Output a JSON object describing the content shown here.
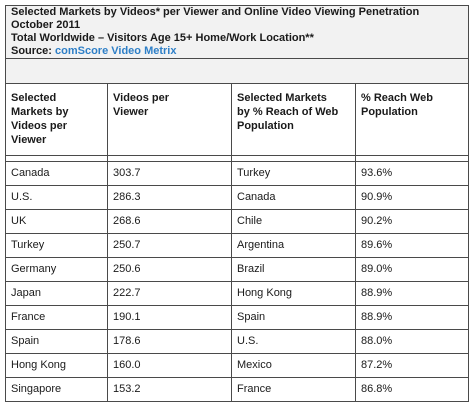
{
  "header": {
    "title_line1": "Selected Markets by Videos* per Viewer and Online Video Viewing Penetration",
    "title_line2": "October 2011",
    "title_line3": "Total Worldwide – Visitors Age 15+ Home/Work Location**",
    "source_label": "Source: ",
    "source_value": "comScore Video Metrix"
  },
  "columns": {
    "c1": [
      "Selected",
      "Markets by",
      "Videos per",
      "Viewer"
    ],
    "c2": [
      "Videos per",
      "Viewer"
    ],
    "c3": [
      "Selected Markets",
      "by % Reach of Web",
      "Population"
    ],
    "c4": [
      "% Reach Web",
      "Population"
    ]
  },
  "rows": [
    {
      "market_videos": "Canada",
      "videos_per_viewer": "303.7",
      "market_reach": "Turkey",
      "reach": "93.6%"
    },
    {
      "market_videos": "U.S.",
      "videos_per_viewer": "286.3",
      "market_reach": "Canada",
      "reach": "90.9%"
    },
    {
      "market_videos": "UK",
      "videos_per_viewer": "268.6",
      "market_reach": "Chile",
      "reach": "90.2%"
    },
    {
      "market_videos": "Turkey",
      "videos_per_viewer": "250.7",
      "market_reach": "Argentina",
      "reach": "89.6%"
    },
    {
      "market_videos": "Germany",
      "videos_per_viewer": "250.6",
      "market_reach": "Brazil",
      "reach": "89.0%"
    },
    {
      "market_videos": "Japan",
      "videos_per_viewer": "222.7",
      "market_reach": "Hong Kong",
      "reach": "88.9%"
    },
    {
      "market_videos": "France",
      "videos_per_viewer": "190.1",
      "market_reach": "Spain",
      "reach": "88.9%"
    },
    {
      "market_videos": "Spain",
      "videos_per_viewer": "178.6",
      "market_reach": "U.S.",
      "reach": "88.0%"
    },
    {
      "market_videos": "Hong Kong",
      "videos_per_viewer": "160.0",
      "market_reach": "Mexico",
      "reach": "87.2%"
    },
    {
      "market_videos": "Singapore",
      "videos_per_viewer": "153.2",
      "market_reach": "France",
      "reach": "86.8%"
    }
  ],
  "colors": {
    "border": "#4a4a4a",
    "header_bg": "#f2f2f2",
    "source_link": "#2e7fc7"
  }
}
